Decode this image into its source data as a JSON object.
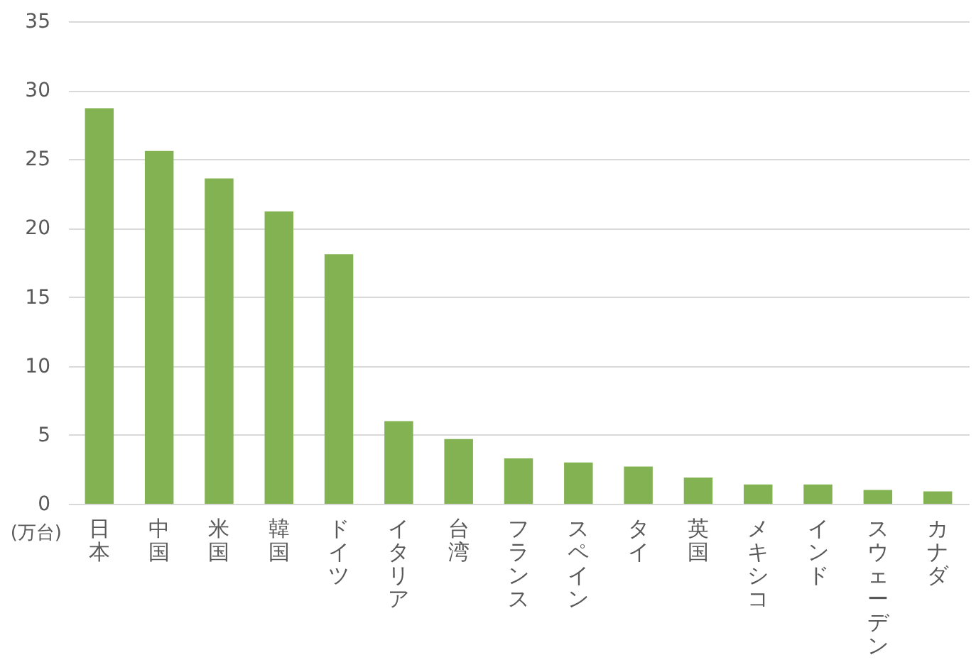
{
  "chart_data": {
    "type": "bar",
    "ylabel": "(万台)",
    "categories": [
      "日本",
      "中国",
      "米国",
      "韓国",
      "ドイツ",
      "イタリア",
      "台湾",
      "フランス",
      "スペイン",
      "タイ",
      "英国",
      "メキシコ",
      "インド",
      "スウェーデン",
      "カナダ"
    ],
    "values": [
      28.7,
      25.6,
      23.6,
      21.2,
      18.1,
      6.0,
      4.7,
      3.3,
      3.0,
      2.7,
      1.9,
      1.4,
      1.4,
      1.0,
      0.9
    ],
    "color": "#83b253",
    "ylim": [
      0,
      35
    ],
    "yticks": [
      0,
      5,
      10,
      15,
      20,
      25,
      30,
      35
    ],
    "grid": "y"
  }
}
